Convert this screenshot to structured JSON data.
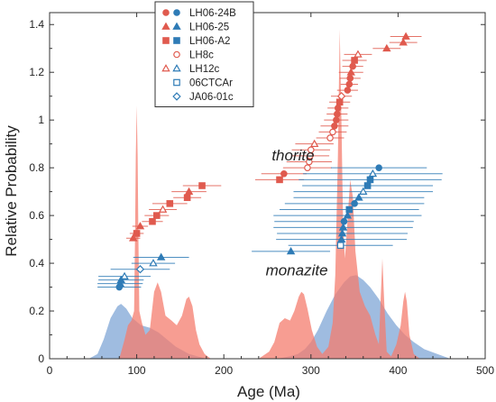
{
  "chart_data": {
    "type": "scatter",
    "xlabel": "Age (Ma)",
    "ylabel": "Relative Probability",
    "xlim": [
      0,
      500
    ],
    "ylim": [
      0,
      1.45
    ],
    "x_ticks": [
      0,
      100,
      200,
      300,
      400,
      500
    ],
    "y_ticks": [
      0,
      0.2,
      0.4,
      0.6,
      0.8,
      1,
      1.2,
      1.4
    ],
    "x_tick_labels": [
      "0",
      "100",
      "200",
      "300",
      "400",
      "500"
    ],
    "y_tick_labels": [
      "0",
      "0.2",
      "0.4",
      "0.6",
      "0.8",
      "1",
      "1.2",
      "1.4"
    ],
    "grid": false,
    "legend_position": "top-left",
    "colors": {
      "thorite": "#e05a4e",
      "monazite": "#2e7bb6",
      "blue_fill": "#7fa6d6",
      "red_fill": "#f47c6e"
    },
    "annotations": [
      {
        "text": "thorite",
        "x": 255,
        "y": 0.83
      },
      {
        "text": "monazite",
        "x": 248,
        "y": 0.35
      }
    ],
    "legend": [
      {
        "label": "LH06-24B",
        "markers": [
          {
            "shape": "circle",
            "fill": "#e05a4e",
            "stroke": "#e05a4e"
          },
          {
            "shape": "circle",
            "fill": "#2e7bb6",
            "stroke": "#2e7bb6"
          }
        ]
      },
      {
        "label": "LH06-25",
        "markers": [
          {
            "shape": "triangle",
            "fill": "#e05a4e",
            "stroke": "#e05a4e"
          },
          {
            "shape": "triangle",
            "fill": "#2e7bb6",
            "stroke": "#2e7bb6"
          }
        ]
      },
      {
        "label": "LH06-A2",
        "markers": [
          {
            "shape": "square",
            "fill": "#e05a4e",
            "stroke": "#e05a4e"
          },
          {
            "shape": "square",
            "fill": "#2e7bb6",
            "stroke": "#2e7bb6"
          }
        ]
      },
      {
        "label": "LH8c",
        "markers": [
          {
            "shape": "circle",
            "fill": "none",
            "stroke": "#e05a4e"
          }
        ]
      },
      {
        "label": "LH12c",
        "markers": [
          {
            "shape": "triangle",
            "fill": "none",
            "stroke": "#e05a4e"
          },
          {
            "shape": "triangle",
            "fill": "none",
            "stroke": "#2e7bb6"
          }
        ]
      },
      {
        "label": "06CTCAr",
        "markers": [
          {
            "shape": "square",
            "fill": "none",
            "stroke": "#2e7bb6"
          }
        ]
      },
      {
        "label": "JA06-01c",
        "markers": [
          {
            "shape": "diamond",
            "fill": "none",
            "stroke": "#2e7bb6"
          }
        ]
      }
    ],
    "probability_curves": [
      {
        "color": "#7fa6d6",
        "points": [
          [
            45,
            0
          ],
          [
            55,
            0.02
          ],
          [
            62,
            0.08
          ],
          [
            70,
            0.17
          ],
          [
            78,
            0.22
          ],
          [
            82,
            0.23
          ],
          [
            88,
            0.21
          ],
          [
            95,
            0.17
          ],
          [
            105,
            0.14
          ],
          [
            115,
            0.13
          ],
          [
            125,
            0.11
          ],
          [
            135,
            0.08
          ],
          [
            145,
            0.05
          ],
          [
            160,
            0.02
          ],
          [
            180,
            0
          ]
        ]
      },
      {
        "color": "#f47c6e",
        "points": [
          [
            80,
            0
          ],
          [
            86,
            0.08
          ],
          [
            90,
            0.14
          ],
          [
            94,
            0.16
          ],
          [
            97,
            0.2
          ],
          [
            98,
            0.5
          ],
          [
            99,
            0.85
          ],
          [
            100,
            1.06
          ],
          [
            101,
            0.85
          ],
          [
            102,
            0.5
          ],
          [
            103,
            0.2
          ],
          [
            106,
            0.15
          ],
          [
            110,
            0.1
          ],
          [
            115,
            0.12
          ],
          [
            120,
            0.28
          ],
          [
            124,
            0.32
          ],
          [
            128,
            0.28
          ],
          [
            133,
            0.18
          ],
          [
            140,
            0.16
          ],
          [
            146,
            0.14
          ],
          [
            152,
            0.18
          ],
          [
            157,
            0.25
          ],
          [
            160,
            0.26
          ],
          [
            164,
            0.22
          ],
          [
            168,
            0.12
          ],
          [
            172,
            0.06
          ],
          [
            178,
            0.02
          ],
          [
            185,
            0
          ]
        ]
      },
      {
        "color": "#7fa6d6",
        "points": [
          [
            262,
            0
          ],
          [
            275,
            0.01
          ],
          [
            285,
            0.02
          ],
          [
            293,
            0.04
          ],
          [
            300,
            0.07
          ],
          [
            308,
            0.12
          ],
          [
            318,
            0.2
          ],
          [
            328,
            0.27
          ],
          [
            338,
            0.32
          ],
          [
            345,
            0.345
          ],
          [
            352,
            0.35
          ],
          [
            360,
            0.33
          ],
          [
            368,
            0.3
          ],
          [
            378,
            0.25
          ],
          [
            388,
            0.19
          ],
          [
            398,
            0.14
          ],
          [
            408,
            0.1
          ],
          [
            418,
            0.07
          ],
          [
            430,
            0.04
          ],
          [
            445,
            0.02
          ],
          [
            460,
            0
          ]
        ]
      },
      {
        "color": "#f47c6e",
        "points": [
          [
            240,
            0
          ],
          [
            252,
            0.03
          ],
          [
            258,
            0.07
          ],
          [
            264,
            0.15
          ],
          [
            270,
            0.17
          ],
          [
            276,
            0.16
          ],
          [
            281,
            0.2
          ],
          [
            286,
            0.26
          ],
          [
            289,
            0.28
          ],
          [
            292,
            0.27
          ],
          [
            296,
            0.21
          ],
          [
            301,
            0.12
          ],
          [
            307,
            0.05
          ],
          [
            313,
            0.02
          ],
          [
            320,
            0.05
          ],
          [
            325,
            0.15
          ],
          [
            328,
            0.35
          ],
          [
            331,
            0.85
          ],
          [
            333,
            1.38
          ],
          [
            335,
            1.0
          ],
          [
            337,
            0.55
          ],
          [
            339,
            0.42
          ],
          [
            342,
            0.58
          ],
          [
            345,
            0.75
          ],
          [
            348,
            0.68
          ],
          [
            351,
            0.45
          ],
          [
            356,
            0.28
          ],
          [
            362,
            0.22
          ],
          [
            368,
            0.18
          ],
          [
            374,
            0.1
          ],
          [
            378,
            0.06
          ],
          [
            380,
            0.25
          ],
          [
            382,
            0.42
          ],
          [
            384,
            0.25
          ],
          [
            387,
            0.03
          ],
          [
            392,
            0.01
          ],
          [
            398,
            0.06
          ],
          [
            403,
            0.14
          ],
          [
            406,
            0.24
          ],
          [
            408,
            0.28
          ],
          [
            410,
            0.24
          ],
          [
            413,
            0.1
          ],
          [
            418,
            0.02
          ],
          [
            425,
            0
          ]
        ]
      }
    ],
    "series": [
      {
        "color": "#e05a4e",
        "points": [
          {
            "x": 96,
            "y": 0.505,
            "xerr": 8,
            "shape": "triangle",
            "filled": true
          },
          {
            "x": 100,
            "y": 0.525,
            "xerr": 8,
            "shape": "square",
            "filled": true
          },
          {
            "x": 104,
            "y": 0.555,
            "xerr": 9,
            "shape": "triangle",
            "filled": true
          },
          {
            "x": 118,
            "y": 0.575,
            "xerr": 12,
            "shape": "square",
            "filled": true
          },
          {
            "x": 123,
            "y": 0.6,
            "xerr": 14,
            "shape": "square",
            "filled": true
          },
          {
            "x": 130,
            "y": 0.625,
            "xerr": 16,
            "shape": "triangle",
            "filled": false
          },
          {
            "x": 138,
            "y": 0.65,
            "xerr": 20,
            "shape": "square",
            "filled": true
          },
          {
            "x": 158,
            "y": 0.675,
            "xerr": 16,
            "shape": "square",
            "filled": true
          },
          {
            "x": 160,
            "y": 0.7,
            "xerr": 20,
            "shape": "triangle",
            "filled": true
          },
          {
            "x": 175,
            "y": 0.725,
            "xerr": 22,
            "shape": "square",
            "filled": true
          },
          {
            "x": 264,
            "y": 0.75,
            "xerr": 28,
            "shape": "square",
            "filled": true
          },
          {
            "x": 269,
            "y": 0.775,
            "xerr": 26,
            "shape": "circle",
            "filled": true
          },
          {
            "x": 296,
            "y": 0.8,
            "xerr": 28,
            "shape": "circle",
            "filled": false
          },
          {
            "x": 298,
            "y": 0.825,
            "xerr": 26,
            "shape": "circle",
            "filled": false
          },
          {
            "x": 299,
            "y": 0.85,
            "xerr": 22,
            "shape": "circle",
            "filled": false
          },
          {
            "x": 300,
            "y": 0.875,
            "xerr": 22,
            "shape": "circle",
            "filled": false
          },
          {
            "x": 304,
            "y": 0.9,
            "xerr": 22,
            "shape": "triangle",
            "filled": false
          },
          {
            "x": 322,
            "y": 0.925,
            "xerr": 16,
            "shape": "circle",
            "filled": false
          },
          {
            "x": 325,
            "y": 0.95,
            "xerr": 16,
            "shape": "circle",
            "filled": false
          },
          {
            "x": 327,
            "y": 0.975,
            "xerr": 16,
            "shape": "circle",
            "filled": true
          },
          {
            "x": 329,
            "y": 1.0,
            "xerr": 14,
            "shape": "circle",
            "filled": true
          },
          {
            "x": 330,
            "y": 1.025,
            "xerr": 12,
            "shape": "circle",
            "filled": true
          },
          {
            "x": 331,
            "y": 1.05,
            "xerr": 12,
            "shape": "circle",
            "filled": true
          },
          {
            "x": 333,
            "y": 1.075,
            "xerr": 12,
            "shape": "square",
            "filled": true
          },
          {
            "x": 335,
            "y": 1.1,
            "xerr": 12,
            "shape": "diamond",
            "filled": false
          },
          {
            "x": 342,
            "y": 1.125,
            "xerr": 12,
            "shape": "circle",
            "filled": true
          },
          {
            "x": 344,
            "y": 1.15,
            "xerr": 10,
            "shape": "circle",
            "filled": true
          },
          {
            "x": 345,
            "y": 1.175,
            "xerr": 12,
            "shape": "circle",
            "filled": true
          },
          {
            "x": 346,
            "y": 1.2,
            "xerr": 14,
            "shape": "triangle",
            "filled": true
          },
          {
            "x": 348,
            "y": 1.225,
            "xerr": 12,
            "shape": "circle",
            "filled": true
          },
          {
            "x": 350,
            "y": 1.25,
            "xerr": 14,
            "shape": "square",
            "filled": true
          },
          {
            "x": 354,
            "y": 1.275,
            "xerr": 16,
            "shape": "triangle",
            "filled": false
          },
          {
            "x": 387,
            "y": 1.3,
            "xerr": 16,
            "shape": "triangle",
            "filled": true
          },
          {
            "x": 406,
            "y": 1.325,
            "xerr": 16,
            "shape": "triangle",
            "filled": true
          },
          {
            "x": 409,
            "y": 1.35,
            "xerr": 18,
            "shape": "triangle",
            "filled": true
          }
        ]
      },
      {
        "color": "#2e7bb6",
        "points": [
          {
            "x": 80,
            "y": 0.3,
            "xerr": 25,
            "shape": "circle",
            "filled": true
          },
          {
            "x": 81,
            "y": 0.315,
            "xerr": 26,
            "shape": "triangle",
            "filled": true
          },
          {
            "x": 82,
            "y": 0.33,
            "xerr": 26,
            "shape": "triangle",
            "filled": true
          },
          {
            "x": 86,
            "y": 0.345,
            "xerr": 30,
            "shape": "triangle",
            "filled": false
          },
          {
            "x": 104,
            "y": 0.375,
            "xerr": 34,
            "shape": "diamond",
            "filled": false
          },
          {
            "x": 119,
            "y": 0.4,
            "xerr": 25,
            "shape": "triangle",
            "filled": false
          },
          {
            "x": 128,
            "y": 0.425,
            "xerr": 32,
            "shape": "triangle",
            "filled": true
          },
          {
            "x": 277,
            "y": 0.45,
            "xerr": 45,
            "shape": "triangle",
            "filled": true
          },
          {
            "x": 334,
            "y": 0.475,
            "xerr": 60,
            "shape": "square",
            "filled": false
          },
          {
            "x": 335,
            "y": 0.5,
            "xerr": 75,
            "shape": "triangle",
            "filled": true
          },
          {
            "x": 336,
            "y": 0.525,
            "xerr": 75,
            "shape": "triangle",
            "filled": true
          },
          {
            "x": 337,
            "y": 0.55,
            "xerr": 80,
            "shape": "triangle",
            "filled": true
          },
          {
            "x": 338,
            "y": 0.575,
            "xerr": 80,
            "shape": "circle",
            "filled": true
          },
          {
            "x": 342,
            "y": 0.6,
            "xerr": 85,
            "shape": "triangle",
            "filled": true
          },
          {
            "x": 344,
            "y": 0.625,
            "xerr": 80,
            "shape": "square",
            "filled": true
          },
          {
            "x": 350,
            "y": 0.65,
            "xerr": 80,
            "shape": "circle",
            "filled": true
          },
          {
            "x": 355,
            "y": 0.675,
            "xerr": 75,
            "shape": "triangle",
            "filled": true
          },
          {
            "x": 360,
            "y": 0.7,
            "xerr": 80,
            "shape": "triangle",
            "filled": false
          },
          {
            "x": 365,
            "y": 0.725,
            "xerr": 75,
            "shape": "square",
            "filled": true
          },
          {
            "x": 368,
            "y": 0.75,
            "xerr": 82,
            "shape": "square",
            "filled": true
          },
          {
            "x": 371,
            "y": 0.775,
            "xerr": 80,
            "shape": "triangle",
            "filled": false
          },
          {
            "x": 378,
            "y": 0.8,
            "xerr": 55,
            "shape": "circle",
            "filled": true
          }
        ]
      }
    ]
  }
}
